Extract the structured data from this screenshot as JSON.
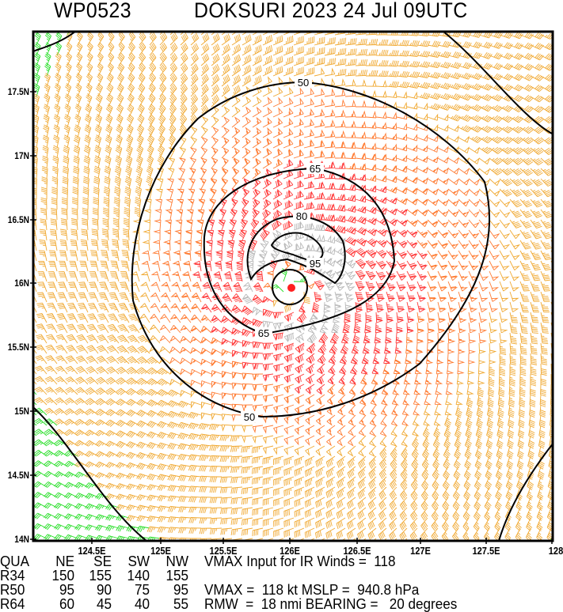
{
  "title": {
    "storm_id": "WP0523",
    "storm_time": "DOKSURI 2023 24 Jul 09UTC"
  },
  "map": {
    "lat_labels": [
      "17.5N",
      "17N",
      "16.5N",
      "16N",
      "15.5N",
      "15N",
      "14.5N",
      "14N"
    ],
    "lon_labels": [
      "124.5E",
      "125E",
      "125.5E",
      "126E",
      "126.5E",
      "127E",
      "127.5E",
      "128"
    ],
    "contour_labels": {
      "c50_top": "50",
      "c50_bottom": "50",
      "c65_top": "65",
      "c65_bottom": "65",
      "c80": "80",
      "c95": "95"
    },
    "wind_colors": {
      "below_34": "#22dd22",
      "r34_50": "#f0a830",
      "r50_64": "#ff7a30",
      "r64_95": "#ff3a3a",
      "above_95": "#b8b8b8",
      "center": "#ff2020"
    }
  },
  "table": {
    "header": [
      "QUA",
      "NE",
      "SE",
      "SW",
      "NW"
    ],
    "rows": [
      [
        "R34",
        "150",
        "155",
        "140",
        "155"
      ],
      [
        "R50",
        "95",
        "90",
        "75",
        "95"
      ],
      [
        "R64",
        "60",
        "45",
        "40",
        "55"
      ]
    ]
  },
  "info": {
    "vmax_ir": "VMAX Input for IR Winds =  118",
    "vmax_mslp": "VMAX =  118 kt MSLP =  940.8 hPa",
    "rmw_bearing": "RMW  =  18 nmi BEARING =   20 degrees"
  }
}
